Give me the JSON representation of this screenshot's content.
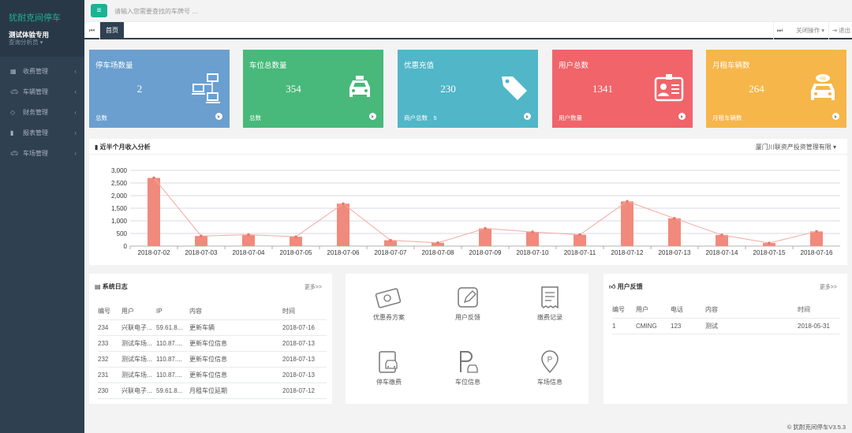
{
  "sidebar": {
    "brand": "犹耐克间停车",
    "org": "测试体验专用",
    "role": "查询分析员 ▾",
    "items": [
      {
        "label": "收费管理",
        "icon": "table-icon"
      },
      {
        "label": "车辆管理",
        "icon": "car-icon"
      },
      {
        "label": "财务管理",
        "icon": "diamond-icon"
      },
      {
        "label": "报表管理",
        "icon": "bar-chart-icon"
      },
      {
        "label": "车场管理",
        "icon": "car-icon"
      }
    ]
  },
  "topbar": {
    "search_placeholder": "请输入您需要查找的车牌号 …",
    "menu_icon": "hamburger-icon"
  },
  "tabs": {
    "home": "首页",
    "close_ops": "关闭操作 ▾",
    "logout": "退出"
  },
  "cards": [
    {
      "title": "停车场数量",
      "value": "2",
      "footer": "总数",
      "color": "#6a9fd0",
      "icon": "network-icon"
    },
    {
      "title": "车位总数量",
      "value": "354",
      "footer": "总数",
      "color": "#48b97a",
      "icon": "taxi-icon"
    },
    {
      "title": "优惠充值",
      "value": "230",
      "footer": "商户总数　5",
      "color": "#50b6c8",
      "icon": "tag-icon"
    },
    {
      "title": "用户总数",
      "value": "1341",
      "footer": "用户数量",
      "color": "#f0646a",
      "icon": "id-card-icon"
    },
    {
      "title": "月租车辆数",
      "value": "264",
      "footer": "月租车辆数",
      "color": "#f6b64a",
      "icon": "vip-car-icon"
    }
  ],
  "chart_panel": {
    "title": "近半个月收入分析",
    "selector": "厦门川联资产投资管理有限 ▾"
  },
  "chart_data": {
    "type": "bar",
    "overlay": "line",
    "categories": [
      "2018-07-02",
      "2018-07-03",
      "2018-07-04",
      "2018-07-05",
      "2018-07-06",
      "2018-07-07",
      "2018-07-08",
      "2018-07-09",
      "2018-07-10",
      "2018-07-11",
      "2018-07-12",
      "2018-07-13",
      "2018-07-14",
      "2018-07-15",
      "2018-07-16"
    ],
    "values": [
      2700,
      400,
      450,
      370,
      1680,
      230,
      130,
      700,
      560,
      450,
      1770,
      1100,
      440,
      120,
      580
    ],
    "ylim": [
      0,
      3000
    ],
    "yticks": [
      "0",
      "500",
      "1,000",
      "1,500",
      "2,000",
      "2,500",
      "3,000"
    ],
    "bar_color": "#f08a7c",
    "grid": true
  },
  "log": {
    "title": "系统日志",
    "more": "更多>>",
    "columns": [
      "编号",
      "用户",
      "IP",
      "内容",
      "时间"
    ],
    "rows": [
      [
        "234",
        "兴联电子...",
        "59.61.8...",
        "更新车辆",
        "2018-07-16"
      ],
      [
        "233",
        "测试车场...",
        "110.87....",
        "更新车位信息",
        "2018-07-13"
      ],
      [
        "232",
        "测试车场...",
        "110.87....",
        "更新车位信息",
        "2018-07-13"
      ],
      [
        "231",
        "测试车场...",
        "110.87....",
        "更新车位信息",
        "2018-07-13"
      ],
      [
        "230",
        "兴联电子...",
        "59.61.8...",
        "月租车位延期",
        "2018-07-12"
      ]
    ]
  },
  "quick": [
    {
      "label": "优惠券方案",
      "icon": "coupon-icon"
    },
    {
      "label": "用户反馈",
      "icon": "edit-icon"
    },
    {
      "label": "缴费记录",
      "icon": "receipt-icon"
    },
    {
      "label": "停车缴费",
      "icon": "parking-payment-icon"
    },
    {
      "label": "车位信息",
      "icon": "parking-space-icon"
    },
    {
      "label": "车场信息",
      "icon": "location-parking-icon"
    }
  ],
  "feedback": {
    "title": "用户反馈",
    "more": "更多>>",
    "columns": [
      "编号",
      "用户",
      "电话",
      "内容",
      "时间"
    ],
    "rows": [
      [
        "1",
        "CMING",
        "123",
        "测试",
        "2018-05-31"
      ]
    ]
  },
  "footer": "© 犹耐克间停车V3.5.3"
}
